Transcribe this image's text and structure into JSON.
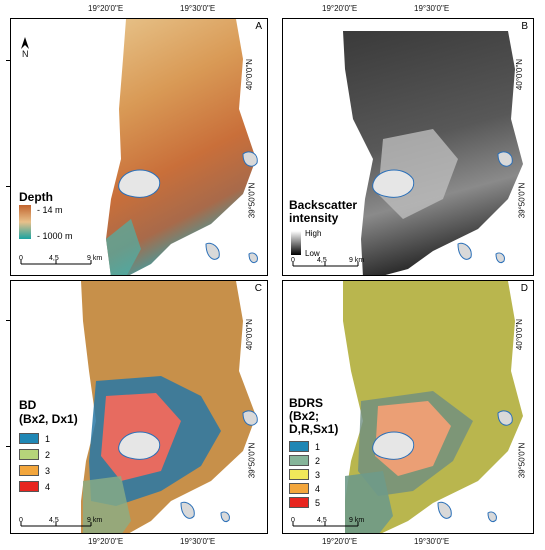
{
  "axes": {
    "top_ticks": [
      "19°20'0\"E",
      "19°30'0\"E"
    ],
    "bottom_ticks": [
      "19°20'0\"E",
      "19°30'0\"E"
    ],
    "right_ticks": [
      "40°0'0\"N",
      "39°50'0\"N"
    ]
  },
  "panels": {
    "A": {
      "letter": "A",
      "legend_title": "Depth",
      "legend_high": "- 14 m",
      "legend_low": "- 1000 m",
      "north": "N"
    },
    "B": {
      "letter": "B",
      "legend_title": "Backscatter",
      "legend_title2": "intensity",
      "legend_high": "High",
      "legend_low": "Low"
    },
    "C": {
      "letter": "C",
      "legend_title": "BD",
      "legend_title2": "(Bx2, Dx1)",
      "classes": [
        {
          "label": "1",
          "color": "#1f87b5"
        },
        {
          "label": "2",
          "color": "#b6d47a"
        },
        {
          "label": "3",
          "color": "#f3a63c"
        },
        {
          "label": "4",
          "color": "#e8251f"
        }
      ]
    },
    "D": {
      "letter": "D",
      "legend_title": "BDRS",
      "legend_title2": "(Bx2;",
      "legend_title3": "D,R,Sx1)",
      "classes": [
        {
          "label": "1",
          "color": "#1f87b5"
        },
        {
          "label": "2",
          "color": "#86b59a"
        },
        {
          "label": "3",
          "color": "#f1e85a"
        },
        {
          "label": "4",
          "color": "#f3a63c"
        },
        {
          "label": "5",
          "color": "#e8251f"
        }
      ]
    }
  },
  "scalebar": {
    "t0": "0",
    "t1": "4,5",
    "t2": "9 km"
  }
}
